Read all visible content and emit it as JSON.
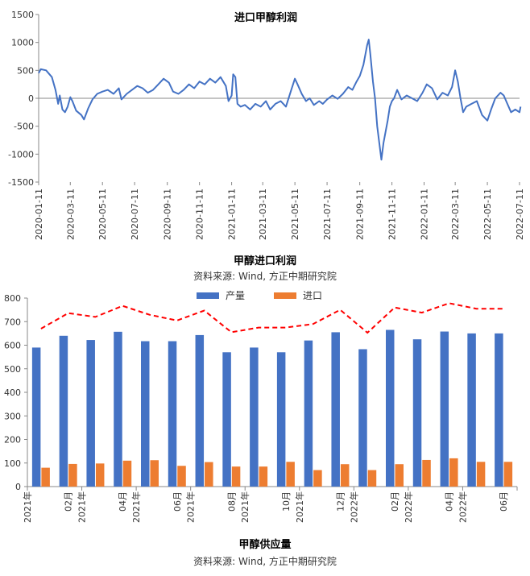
{
  "chart_data": [
    {
      "type": "line",
      "title": "进口甲醇利润",
      "ylim": [
        -1500,
        1500
      ],
      "yticks": [
        1500,
        1000,
        500,
        0,
        -500,
        -1000,
        -1500
      ],
      "xticks": [
        "2020-01-11",
        "2020-03-11",
        "2020-05-11",
        "2020-07-11",
        "2020-09-11",
        "2020-11-11",
        "2021-01-11",
        "2021-03-11",
        "2021-05-11",
        "2021-07-11",
        "2021-09-11",
        "2021-11-11",
        "2022-01-11",
        "2022-03-11",
        "2022-05-11",
        "2022-07-11"
      ],
      "series": [
        {
          "color": "#4472C4",
          "points": [
            [
              "2020-01-11",
              450
            ],
            [
              "2020-01-15",
              520
            ],
            [
              "2020-01-25",
              500
            ],
            [
              "2020-02-05",
              380
            ],
            [
              "2020-02-12",
              150
            ],
            [
              "2020-02-17",
              -100
            ],
            [
              "2020-02-20",
              50
            ],
            [
              "2020-02-25",
              -200
            ],
            [
              "2020-03-01",
              -250
            ],
            [
              "2020-03-06",
              -150
            ],
            [
              "2020-03-11",
              20
            ],
            [
              "2020-03-15",
              -50
            ],
            [
              "2020-03-22",
              -220
            ],
            [
              "2020-04-01",
              -300
            ],
            [
              "2020-04-06",
              -380
            ],
            [
              "2020-04-14",
              -180
            ],
            [
              "2020-04-22",
              -20
            ],
            [
              "2020-05-01",
              80
            ],
            [
              "2020-05-11",
              120
            ],
            [
              "2020-05-21",
              150
            ],
            [
              "2020-06-01",
              80
            ],
            [
              "2020-06-11",
              180
            ],
            [
              "2020-06-16",
              -20
            ],
            [
              "2020-06-26",
              80
            ],
            [
              "2020-07-06",
              150
            ],
            [
              "2020-07-16",
              220
            ],
            [
              "2020-07-26",
              180
            ],
            [
              "2020-08-05",
              100
            ],
            [
              "2020-08-15",
              150
            ],
            [
              "2020-08-25",
              250
            ],
            [
              "2020-09-04",
              350
            ],
            [
              "2020-09-14",
              280
            ],
            [
              "2020-09-22",
              120
            ],
            [
              "2020-10-02",
              80
            ],
            [
              "2020-10-12",
              150
            ],
            [
              "2020-10-22",
              250
            ],
            [
              "2020-11-01",
              180
            ],
            [
              "2020-11-11",
              300
            ],
            [
              "2020-11-21",
              250
            ],
            [
              "2020-12-01",
              350
            ],
            [
              "2020-12-11",
              280
            ],
            [
              "2020-12-21",
              380
            ],
            [
              "2020-12-31",
              220
            ],
            [
              "2021-01-05",
              -50
            ],
            [
              "2021-01-11",
              50
            ],
            [
              "2021-01-14",
              430
            ],
            [
              "2021-01-18",
              380
            ],
            [
              "2021-01-22",
              -100
            ],
            [
              "2021-01-28",
              -150
            ],
            [
              "2021-02-05",
              -120
            ],
            [
              "2021-02-15",
              -200
            ],
            [
              "2021-02-25",
              -100
            ],
            [
              "2021-03-07",
              -150
            ],
            [
              "2021-03-17",
              -50
            ],
            [
              "2021-03-25",
              -200
            ],
            [
              "2021-04-04",
              -100
            ],
            [
              "2021-04-14",
              -50
            ],
            [
              "2021-04-24",
              -150
            ],
            [
              "2021-05-04",
              150
            ],
            [
              "2021-05-11",
              350
            ],
            [
              "2021-05-16",
              250
            ],
            [
              "2021-05-24",
              80
            ],
            [
              "2021-06-01",
              -50
            ],
            [
              "2021-06-08",
              0
            ],
            [
              "2021-06-16",
              -120
            ],
            [
              "2021-06-26",
              -50
            ],
            [
              "2021-07-03",
              -100
            ],
            [
              "2021-07-11",
              -20
            ],
            [
              "2021-07-21",
              50
            ],
            [
              "2021-07-31",
              -10
            ],
            [
              "2021-08-10",
              80
            ],
            [
              "2021-08-20",
              200
            ],
            [
              "2021-08-28",
              150
            ],
            [
              "2021-09-05",
              300
            ],
            [
              "2021-09-11",
              400
            ],
            [
              "2021-09-18",
              600
            ],
            [
              "2021-09-25",
              950
            ],
            [
              "2021-09-28",
              1050
            ],
            [
              "2021-10-01",
              800
            ],
            [
              "2021-10-06",
              300
            ],
            [
              "2021-10-10",
              0
            ],
            [
              "2021-10-14",
              -500
            ],
            [
              "2021-10-18",
              -800
            ],
            [
              "2021-10-22",
              -1100
            ],
            [
              "2021-10-26",
              -800
            ],
            [
              "2021-10-30",
              -600
            ],
            [
              "2021-11-03",
              -400
            ],
            [
              "2021-11-07",
              -150
            ],
            [
              "2021-11-11",
              -50
            ],
            [
              "2021-11-15",
              0
            ],
            [
              "2021-11-21",
              150
            ],
            [
              "2021-11-29",
              -20
            ],
            [
              "2021-12-09",
              50
            ],
            [
              "2021-12-19",
              0
            ],
            [
              "2021-12-29",
              -50
            ],
            [
              "2022-01-08",
              100
            ],
            [
              "2022-01-16",
              250
            ],
            [
              "2022-01-26",
              180
            ],
            [
              "2022-02-05",
              -20
            ],
            [
              "2022-02-15",
              100
            ],
            [
              "2022-02-25",
              50
            ],
            [
              "2022-03-05",
              200
            ],
            [
              "2022-03-11",
              500
            ],
            [
              "2022-03-16",
              300
            ],
            [
              "2022-03-21",
              0
            ],
            [
              "2022-03-26",
              -250
            ],
            [
              "2022-04-01",
              -150
            ],
            [
              "2022-04-11",
              -100
            ],
            [
              "2022-04-21",
              -50
            ],
            [
              "2022-05-01",
              -300
            ],
            [
              "2022-05-11",
              -400
            ],
            [
              "2022-05-18",
              -200
            ],
            [
              "2022-05-26",
              0
            ],
            [
              "2022-06-05",
              100
            ],
            [
              "2022-06-11",
              50
            ],
            [
              "2022-06-18",
              -100
            ],
            [
              "2022-06-25",
              -250
            ],
            [
              "2022-07-03",
              -200
            ],
            [
              "2022-07-11",
              -250
            ],
            [
              "2022-07-13",
              -150
            ]
          ]
        }
      ],
      "grid": false,
      "footer_title": "甲醇进口利润",
      "source": "资料来源: Wind, 方正中期研究院"
    },
    {
      "type": "bar",
      "title": "",
      "ylim": [
        0,
        800
      ],
      "yticks": [
        800,
        700,
        600,
        500,
        400,
        300,
        200,
        100,
        0
      ],
      "legend_position": "top",
      "categories": [
        "2021年01月",
        "2021年02月",
        "2021年03月",
        "2021年04月",
        "2021年05月",
        "2021年06月",
        "2021年07月",
        "2021年08月",
        "2021年09月",
        "2021年10月",
        "2021年11月",
        "2021年12月",
        "2022年01月",
        "2022年02月",
        "2022年03月",
        "2022年04月",
        "2022年05月",
        "2022年06月"
      ],
      "tick_labels": [
        {
          "year": "2021年",
          "month": "02月"
        },
        {
          "year": "2021年",
          "month": "04月"
        },
        {
          "year": "2021年",
          "month": "06月"
        },
        {
          "year": "2021年",
          "month": "08月"
        },
        {
          "year": "2021年",
          "month": "10月"
        },
        {
          "year": "2021年",
          "month": "12月"
        },
        {
          "year": "2022年",
          "month": "02月"
        },
        {
          "year": "2022年",
          "month": "04月"
        },
        {
          "year": "2022年",
          "month": "06月"
        }
      ],
      "series": [
        {
          "name": "产量",
          "color": "#4472C4",
          "values": [
            590,
            640,
            622,
            657,
            617,
            617,
            643,
            570,
            590,
            570,
            620,
            655,
            583,
            665,
            625,
            658,
            650,
            650
          ]
        },
        {
          "name": "进口",
          "color": "#ED7D31",
          "values": [
            80,
            96,
            98,
            110,
            112,
            88,
            104,
            85,
            85,
            105,
            70,
            95,
            70,
            95,
            113,
            120,
            105,
            105
          ]
        },
        {
          "type": "line",
          "color": "#FF0000",
          "dashed": true,
          "values": [
            670,
            736,
            720,
            767,
            729,
            705,
            747,
            655,
            675,
            675,
            690,
            750,
            653,
            760,
            738,
            778,
            755,
            755
          ]
        }
      ],
      "footer_title": "甲醇供应量",
      "source": "资料来源: Wind, 方正中期研究院"
    }
  ]
}
